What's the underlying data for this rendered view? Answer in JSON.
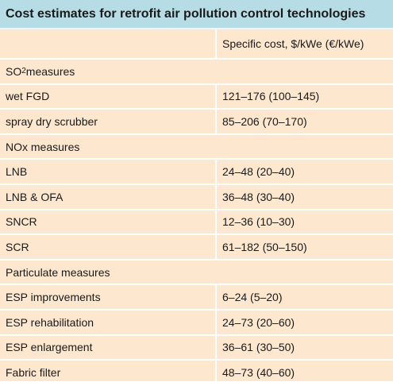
{
  "title": "Cost estimates for retrofit air pollution control technologies",
  "header": {
    "left": "",
    "right": "Specific cost, $/kWe (€/kWe)"
  },
  "sections": [
    {
      "name_prefix": "SO",
      "name_sub": "2",
      "name_suffix": " measures",
      "rows": [
        {
          "tech": "wet FGD",
          "cost": "121–176 (100–145)"
        },
        {
          "tech": "spray dry scrubber",
          "cost": "85–206 (70–170)"
        }
      ]
    },
    {
      "name": "NOx measures",
      "rows": [
        {
          "tech": "LNB",
          "cost": "24–48 (20–40)"
        },
        {
          "tech": "LNB & OFA",
          "cost": "36–48 (30–40)"
        },
        {
          "tech": "SNCR",
          "cost": "12–36 (10–30)"
        },
        {
          "tech": "SCR",
          "cost": "61–182 (50–150)"
        }
      ]
    },
    {
      "name": "Particulate measures",
      "rows": [
        {
          "tech": "ESP improvements",
          "cost": "6–24 (5–20)"
        },
        {
          "tech": "ESP rehabilitation",
          "cost": "24–73 (20–60)"
        },
        {
          "tech": "ESP enlargement",
          "cost": "36–61 (30–50)"
        },
        {
          "tech": "Fabric filter",
          "cost": "48–73 (40–60)"
        }
      ]
    }
  ],
  "colors": {
    "title_bg": "#b6dde5",
    "body_bg": "#fde7cf",
    "divider": "#ffffff"
  }
}
